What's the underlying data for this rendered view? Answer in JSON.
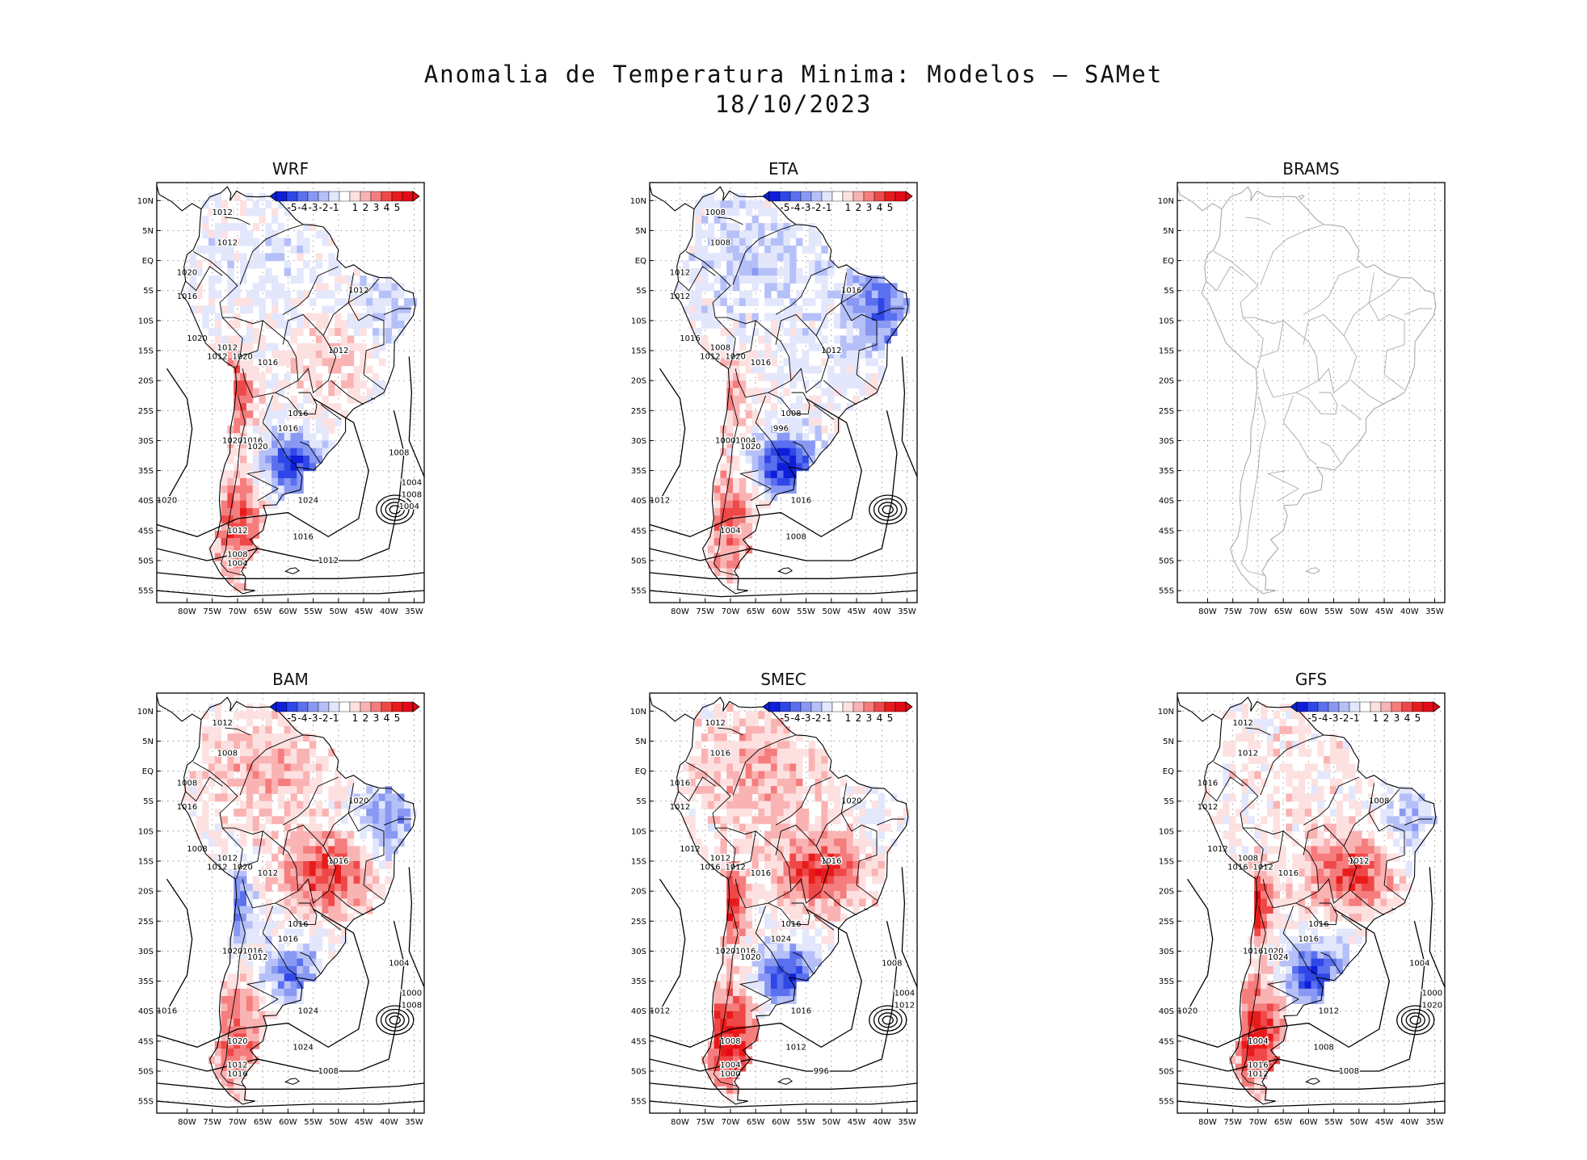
{
  "title": {
    "line1": "Anomalia de Temperatura Minima: Modelos — SAMet",
    "line2": "18/10/2023"
  },
  "axes": {
    "lat_labels": [
      "10N",
      "5N",
      "EQ",
      "5S",
      "10S",
      "15S",
      "20S",
      "25S",
      "30S",
      "35S",
      "40S",
      "45S",
      "50S",
      "55S"
    ],
    "lon_labels": [
      "80W",
      "75W",
      "70W",
      "65W",
      "60W",
      "55W",
      "50W",
      "45W",
      "40W",
      "35W"
    ]
  },
  "colorbar": {
    "labels": [
      "-5",
      "-4",
      "-3",
      "-2",
      "-1",
      "1",
      "2",
      "3",
      "4",
      "5"
    ],
    "colors": [
      "#0d1fd9",
      "#2f47e6",
      "#5b70ee",
      "#8898f3",
      "#b5c0f8",
      "#e3e7fc",
      "#ffffff",
      "#fde1e1",
      "#fab3b3",
      "#f57d7d",
      "#ef4848",
      "#e81b1b",
      "#e30a17"
    ]
  },
  "colors": {
    "contour": "#000000",
    "coast": "#000000",
    "coast_empty": "#aaaaaa",
    "grid": "#999999",
    "warm": "#e8201f",
    "cold": "#2233dd"
  },
  "panels": [
    {
      "name": "WRF",
      "has_data": true,
      "fields": {
        "north": -0.6,
        "ne": -1.2,
        "center": 1.2,
        "pampas": -4.5,
        "andes": 3.5,
        "south": 3.5
      },
      "isobars": [
        "1012",
        "1012",
        "1020",
        "1016",
        "1020",
        "1012",
        "1012",
        "1020",
        "1016",
        "1012",
        "1012",
        "1016",
        "1016",
        "1020",
        "1016",
        "1020",
        "1024",
        "1020",
        "1016",
        "1012",
        "1008",
        "1004",
        "1012",
        "1008",
        "1004",
        "1008",
        "1004"
      ]
    },
    {
      "name": "ETA",
      "has_data": true,
      "fields": {
        "north": -1.2,
        "ne": -3.5,
        "center": -0.3,
        "pampas": -5.0,
        "andes": 2.2,
        "south": 3.0
      },
      "isobars": [
        "1008",
        "1008",
        "1012",
        "1012",
        "1016",
        "1008",
        "1012",
        "1020",
        "1016",
        "1016",
        "1012",
        "1008",
        "1004",
        "1000",
        "996",
        "1020",
        "1016",
        "1012",
        "1008",
        "1004"
      ]
    },
    {
      "name": "BRAMS",
      "has_data": false,
      "fields": {},
      "isobars": []
    },
    {
      "name": "BAM",
      "has_data": true,
      "fields": {
        "north": 1.4,
        "ne": -2.5,
        "center": 3.8,
        "pampas": -3.0,
        "andes": -3.0,
        "south": 3.0
      },
      "isobars": [
        "1012",
        "1008",
        "1008",
        "1016",
        "1008",
        "1012",
        "1012",
        "1020",
        "1012",
        "1020",
        "1016",
        "1016",
        "1016",
        "1020",
        "1016",
        "1012",
        "1024",
        "1016",
        "1024",
        "1020",
        "1012",
        "1016",
        "1008",
        "1004",
        "1000",
        "1008"
      ]
    },
    {
      "name": "SMEC",
      "has_data": true,
      "fields": {
        "north": 1.6,
        "ne": -0.4,
        "center": 3.8,
        "pampas": -4.0,
        "andes": 4.5,
        "south": 4.5
      },
      "isobars": [
        "1012",
        "1016",
        "1016",
        "1012",
        "1012",
        "1012",
        "1016",
        "1012",
        "1016",
        "1020",
        "1016",
        "1016",
        "1016",
        "1020",
        "1024",
        "1020",
        "1016",
        "1012",
        "1012",
        "1008",
        "1004",
        "1000",
        "996",
        "1008",
        "1004",
        "1012"
      ]
    },
    {
      "name": "GFS",
      "has_data": true,
      "fields": {
        "north": 0.6,
        "ne": -1.6,
        "center": 3.6,
        "pampas": -4.5,
        "andes": 4.2,
        "south": 4.5
      },
      "isobars": [
        "1012",
        "1012",
        "1016",
        "1012",
        "1012",
        "1008",
        "1016",
        "1012",
        "1016",
        "1008",
        "1012",
        "1016",
        "1020",
        "1016",
        "1016",
        "1024",
        "1012",
        "1020",
        "1008",
        "1004",
        "1016",
        "1012",
        "1008",
        "1004",
        "1000",
        "1020"
      ]
    }
  ]
}
